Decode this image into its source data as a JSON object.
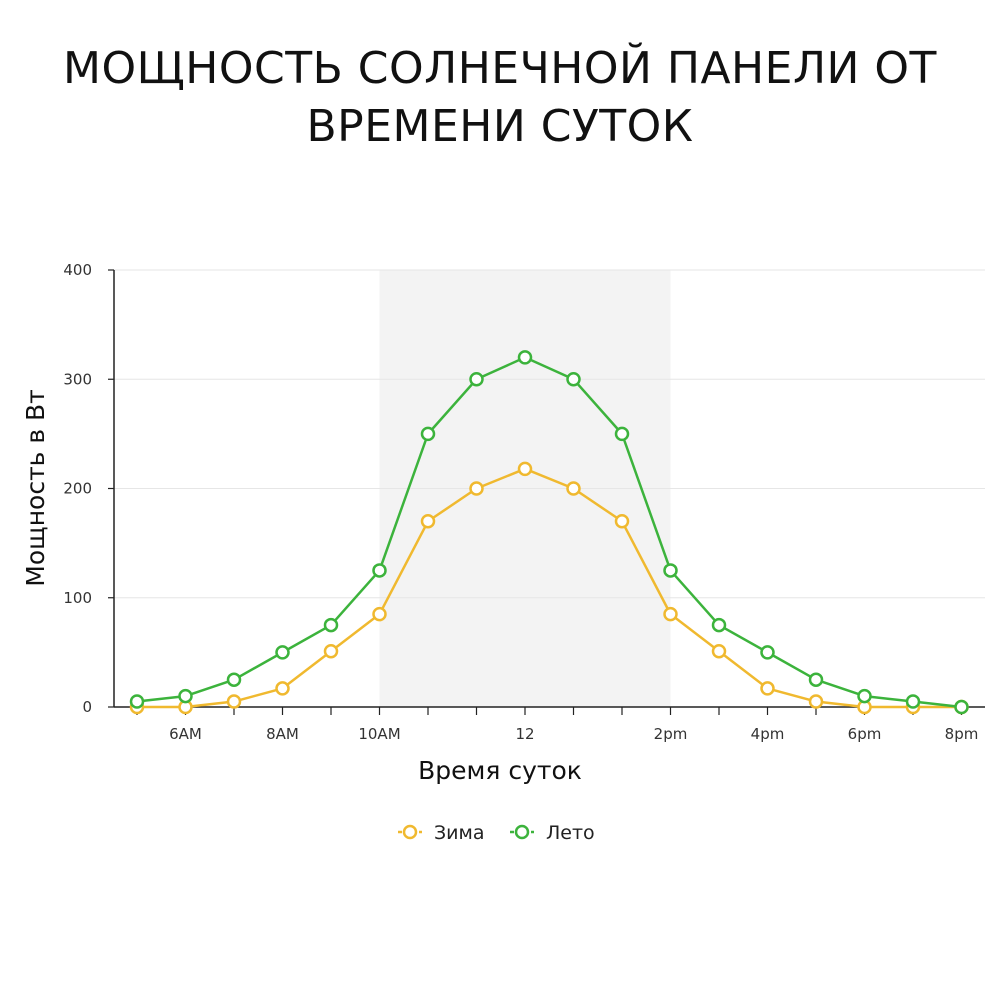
{
  "chart_data": {
    "type": "line",
    "title": "МОЩНОСТЬ СОЛНЕЧНОЙ ПАНЕЛИ ОТ ВРЕМЕНИ СУТОК",
    "xlabel": "Время суток",
    "ylabel": "Мощность в Вт",
    "x": [
      5,
      6,
      7,
      8,
      9,
      10,
      11,
      12,
      13,
      14,
      15,
      16,
      17,
      18,
      19,
      20,
      21,
      22
    ],
    "xlim": [
      4.5,
      22.5
    ],
    "ylim": [
      0,
      400
    ],
    "yticks": [
      0,
      100,
      200,
      300,
      400
    ],
    "xtick_labels": [
      {
        "x": 6,
        "label": "6AM"
      },
      {
        "x": 8,
        "label": "8AM"
      },
      {
        "x": 10,
        "label": "10AM"
      },
      {
        "x": 13,
        "label": "12"
      },
      {
        "x": 16,
        "label": "2pm"
      },
      {
        "x": 18,
        "label": "4pm"
      },
      {
        "x": 20,
        "label": "6pm"
      },
      {
        "x": 22,
        "label": "8pm"
      }
    ],
    "highlight_band": [
      10,
      16
    ],
    "grid": true,
    "legend_position": "bottom-center",
    "series": [
      {
        "name": "Зима",
        "color": "#f0b92f",
        "values": [
          0,
          0,
          5,
          17,
          51,
          85,
          170,
          200,
          218,
          200,
          170,
          85,
          51,
          17,
          5,
          0,
          0,
          0
        ]
      },
      {
        "name": "Лето",
        "color": "#3cb33c",
        "values": [
          5,
          10,
          25,
          50,
          75,
          125,
          250,
          300,
          320,
          300,
          250,
          125,
          75,
          50,
          25,
          10,
          5,
          0
        ]
      }
    ]
  }
}
